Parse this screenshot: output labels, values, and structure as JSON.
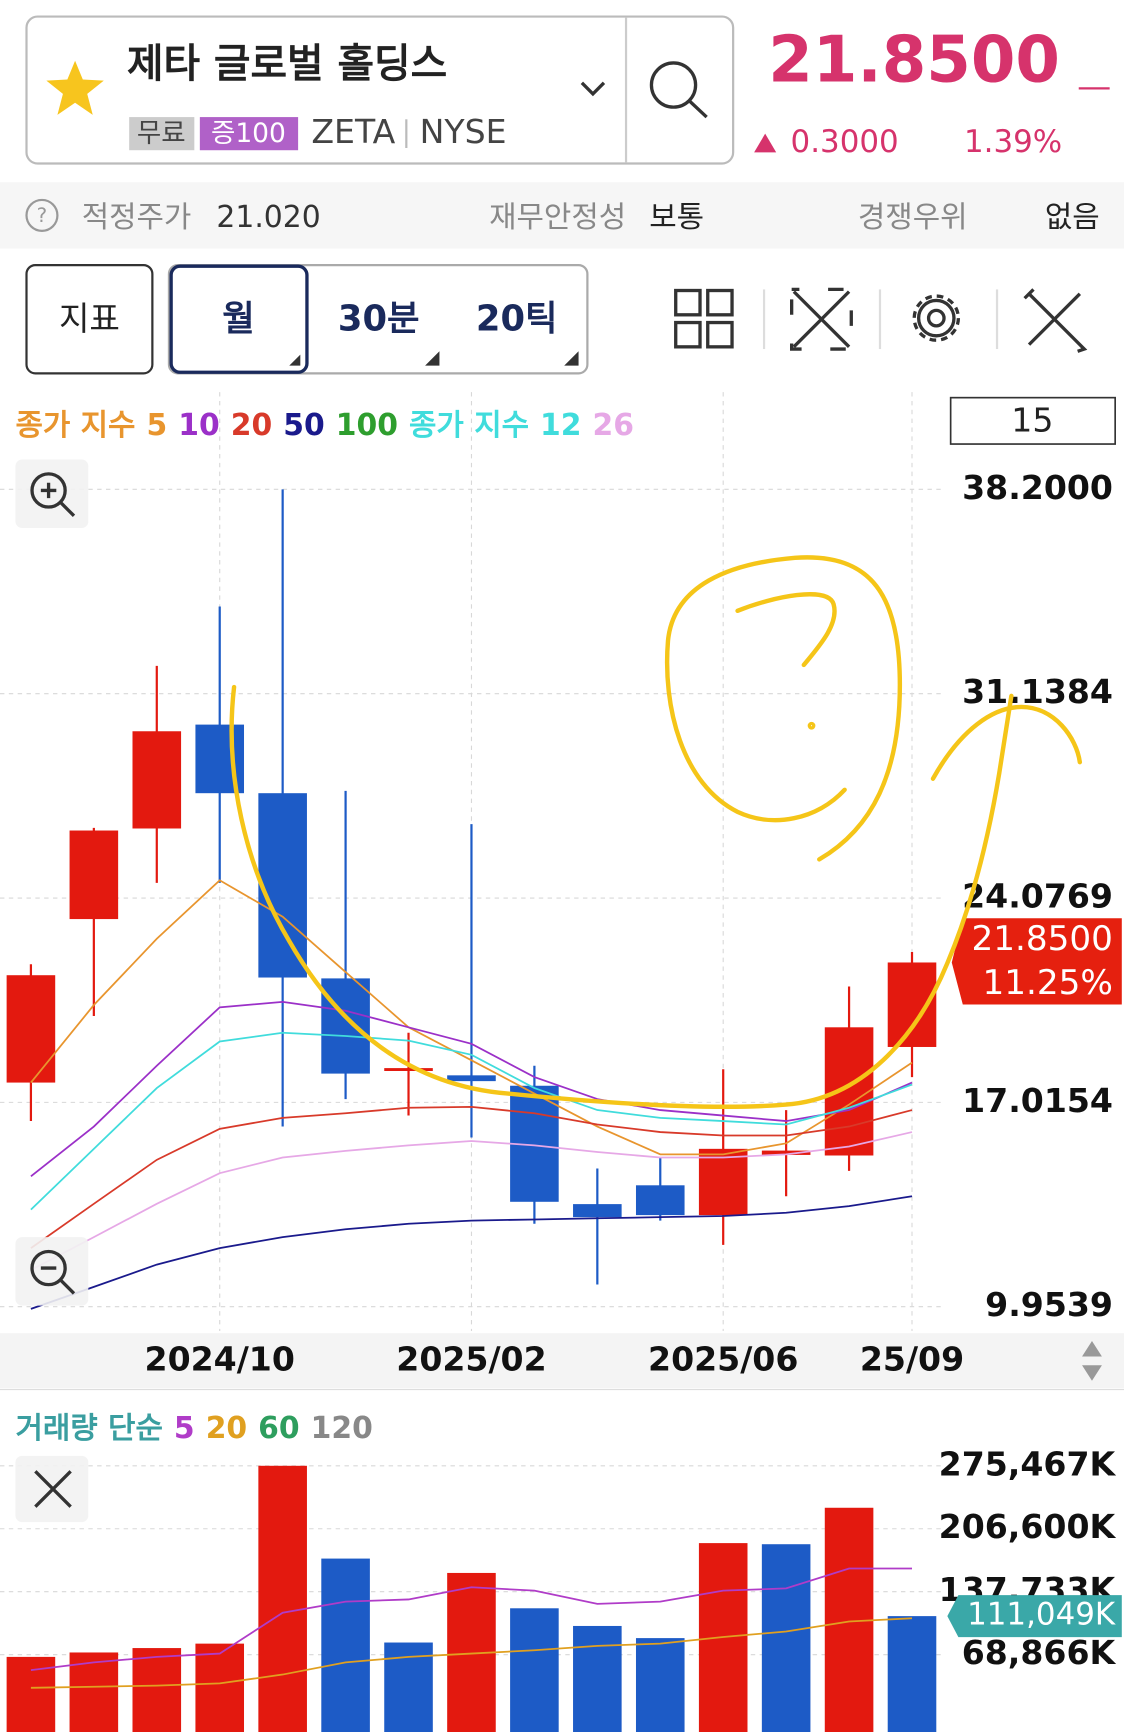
{
  "header": {
    "name": "제타 글로벌 홀딩스",
    "tags": [
      "무료",
      "증100"
    ],
    "ticker": "ZETA",
    "exchange": "NYSE",
    "price": "21.8500",
    "change": "0.3000",
    "change_pct": "1.39%"
  },
  "info": {
    "fair_label": "적정주가",
    "fair_value": "21.020",
    "stability_label": "재무안정성",
    "stability": "보통",
    "compete_label": "경쟁우위",
    "compete": "없음"
  },
  "toolbar": {
    "indicator": "지표",
    "periods": [
      "월",
      "30분",
      "20틱"
    ]
  },
  "chart_data": [
    {
      "type": "candlestick",
      "count": "15",
      "legend_groups": [
        "종가 지수",
        "종가 지수"
      ],
      "categories": [
        null,
        null,
        null,
        "2024/10",
        null,
        null,
        null,
        "2025/02",
        null,
        null,
        null,
        "2025/06",
        null,
        null,
        "25/09"
      ],
      "open": [
        17.7,
        23.35,
        26.48,
        30.07,
        27.7,
        21.3,
        18.1,
        17.95,
        17.59,
        13.5,
        14.15,
        13.12,
        15.2,
        15.18,
        18.93
      ],
      "high": [
        21.79,
        26.5,
        32.1,
        34.15,
        38.2,
        27.78,
        19.42,
        26.63,
        18.28,
        14.73,
        15.1,
        18.16,
        16.75,
        21.02,
        22.21
      ],
      "low": [
        16.37,
        20.0,
        24.6,
        24.6,
        16.18,
        17.13,
        16.56,
        15.8,
        12.82,
        10.72,
        12.93,
        12.09,
        13.77,
        14.65,
        17.89
      ],
      "close": [
        21.41,
        26.41,
        29.84,
        27.7,
        21.33,
        18.01,
        18.2,
        17.75,
        13.58,
        13.05,
        13.12,
        15.41,
        15.35,
        19.61,
        21.85
      ],
      "up_color": "#e3190f",
      "down_color": "#1d5bc6",
      "series": [
        {
          "name": "5",
          "color": "#e8952e",
          "values": [
            17.7,
            20.38,
            22.67,
            24.69,
            23.43,
            21.52,
            19.61,
            18.47,
            17.32,
            16.18,
            15.22,
            15.22,
            15.6,
            16.94,
            18.39
          ]
        },
        {
          "name": "10",
          "color": "#9b30c8",
          "values": [
            14.46,
            16.18,
            18.28,
            20.3,
            20.49,
            20.18,
            19.61,
            19.04,
            17.89,
            17.13,
            16.75,
            16.56,
            16.37,
            16.75,
            17.7
          ]
        },
        {
          "name": "20",
          "color": "#d83a2a",
          "values": [
            11.98,
            13.51,
            15.03,
            16.1,
            16.48,
            16.64,
            16.83,
            16.86,
            16.64,
            16.25,
            15.99,
            15.87,
            15.87,
            16.18,
            16.75
          ]
        },
        {
          "name": "50",
          "color": "#1a1a8c",
          "values": [
            9.88,
            10.64,
            11.41,
            11.98,
            12.36,
            12.63,
            12.82,
            12.93,
            12.97,
            13.01,
            13.05,
            13.09,
            13.2,
            13.43,
            13.77
          ]
        },
        {
          "name": "100",
          "color": "#2e9e2e",
          "values": [
            null,
            null,
            null,
            null,
            null,
            null,
            null,
            null,
            null,
            null,
            null,
            null,
            null,
            null,
            null
          ]
        },
        {
          "name": "12",
          "color": "#40dcdc",
          "values": [
            13.31,
            15.41,
            17.51,
            19.12,
            19.42,
            19.31,
            19.15,
            18.66,
            17.51,
            16.75,
            16.48,
            16.37,
            16.25,
            16.83,
            17.63
          ]
        },
        {
          "name": "26",
          "color": "#e6a8e6",
          "values": [
            11.22,
            12.36,
            13.51,
            14.57,
            15.11,
            15.34,
            15.53,
            15.68,
            15.53,
            15.3,
            15.11,
            15.11,
            15.22,
            15.49,
            15.99
          ]
        }
      ],
      "ylim": [
        9.9539,
        38.2
      ],
      "yticks": [
        {
          "value": 9.9539,
          "label": "9.9539"
        },
        {
          "value": 17.0154,
          "label": "17.0154"
        },
        {
          "value": 24.0769,
          "label": "24.0769"
        },
        {
          "value": 31.1384,
          "label": "31.1384"
        },
        {
          "value": 38.2,
          "label": "38.2000"
        }
      ],
      "last_label": "21.8500",
      "last_pct": "11.25%",
      "grid": true
    },
    {
      "type": "bar",
      "legend_group": "거래량 단순",
      "values": [
        66450,
        71280,
        76100,
        80950,
        275460,
        173980,
        82160,
        158270,
        119610,
        100280,
        86990,
        190900,
        189690,
        229560,
        111049
      ],
      "colors": [
        "#e3190f",
        "#e3190f",
        "#e3190f",
        "#e3190f",
        "#e3190f",
        "#1d5bc6",
        "#1d5bc6",
        "#e3190f",
        "#1d5bc6",
        "#1d5bc6",
        "#1d5bc6",
        "#e3190f",
        "#1d5bc6",
        "#e3190f",
        "#1d5bc6"
      ],
      "series": [
        {
          "name": "5",
          "color": "#b03cc8",
          "values": [
            51950,
            60410,
            66450,
            70080,
            114780,
            126860,
            129280,
            142570,
            138940,
            124440,
            126860,
            138940,
            141360,
            163110,
            163110
          ]
        },
        {
          "name": "20",
          "color": "#e0a020",
          "values": [
            32620,
            33830,
            35040,
            37450,
            47120,
            60410,
            66450,
            70080,
            73700,
            78530,
            80950,
            88200,
            94240,
            105110,
            108740
          ]
        },
        {
          "name": "60",
          "color": "#2e9e5e",
          "values": [
            null,
            null,
            null,
            null,
            null,
            null,
            null,
            null,
            null,
            null,
            null,
            null,
            null,
            null,
            null
          ]
        },
        {
          "name": "120",
          "color": "#888888",
          "values": [
            null,
            null,
            null,
            null,
            null,
            null,
            null,
            null,
            null,
            null,
            null,
            null,
            null,
            null,
            null
          ]
        }
      ],
      "ylim": [
        0,
        275467
      ],
      "yticks": [
        {
          "value": 68866,
          "label": "68,866K"
        },
        {
          "value": 137733,
          "label": "137,733K"
        },
        {
          "value": 206600,
          "label": "206,600K"
        },
        {
          "value": 275467,
          "label": "275,467K"
        }
      ],
      "last_label": "111,049K",
      "grid": true
    }
  ]
}
